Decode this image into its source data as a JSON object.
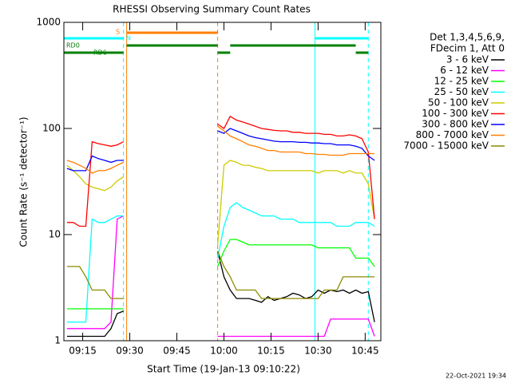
{
  "chart_data": {
    "type": "line",
    "title": "RHESSI Observing Summary Count Rates",
    "x_label": "Start Time (19-Jan-13 09:10:22)",
    "y_label": "Count Rate (s⁻¹ detector⁻¹)",
    "legend_header": [
      "Det 1,3,4,5,6,9,",
      "FDecim 1, Att 0"
    ],
    "timestamp": "22-Oct-2021 19:34",
    "log_y": true,
    "grid": false,
    "legend": "right",
    "xlim": [
      "09:09",
      "10:50"
    ],
    "xticks": [
      "09:15",
      "09:30",
      "09:45",
      "10:00",
      "10:15",
      "10:30",
      "10:45"
    ],
    "ylim": [
      1,
      1000
    ],
    "yticks": [
      1,
      10,
      100,
      1000
    ],
    "x": [
      "09:10",
      "09:12",
      "09:14",
      "09:16",
      "09:18",
      "09:20",
      "09:22",
      "09:24",
      "09:26",
      "09:28",
      "09:30",
      "09:58",
      "10:00",
      "10:02",
      "10:04",
      "10:06",
      "10:08",
      "10:10",
      "10:12",
      "10:14",
      "10:16",
      "10:18",
      "10:20",
      "10:22",
      "10:24",
      "10:26",
      "10:28",
      "10:30",
      "10:32",
      "10:34",
      "10:36",
      "10:38",
      "10:40",
      "10:42",
      "10:44",
      "10:46",
      "10:48"
    ],
    "series": [
      {
        "name": "3 - 6 keV",
        "color": "#000000",
        "values": [
          1.1,
          1.1,
          1.1,
          1.1,
          1.1,
          1.1,
          1.1,
          1.3,
          1.8,
          1.9,
          null,
          7,
          4,
          3,
          2.5,
          2.5,
          2.5,
          2.4,
          2.3,
          2.6,
          2.4,
          2.5,
          2.6,
          2.8,
          2.7,
          2.5,
          2.6,
          3,
          2.8,
          3,
          2.9,
          3,
          2.8,
          3,
          2.8,
          2.9,
          1.5
        ]
      },
      {
        "name": "6 - 12 keV",
        "color": "#ff00ff",
        "values": [
          1.3,
          1.3,
          1.3,
          1.3,
          1.3,
          1.3,
          1.3,
          1.5,
          14,
          15,
          null,
          1.1,
          1.1,
          1.1,
          1.1,
          1.1,
          1.1,
          1.1,
          1.1,
          1.1,
          1.1,
          1.1,
          1.1,
          1.1,
          1.1,
          1.1,
          1.1,
          1.1,
          1.1,
          1.6,
          1.6,
          1.6,
          1.6,
          1.6,
          1.6,
          1.6,
          1.1
        ]
      },
      {
        "name": "12 - 25 keV",
        "color": "#00ff00",
        "values": [
          2,
          2,
          2,
          2,
          2,
          2,
          2,
          2,
          2,
          2,
          null,
          5,
          7,
          9,
          9,
          8.5,
          8,
          8,
          8,
          8,
          8,
          8,
          8,
          8,
          8,
          8,
          8,
          7.5,
          7.5,
          7.5,
          7.5,
          7.5,
          7.5,
          6,
          6,
          6,
          5
        ]
      },
      {
        "name": "25 - 50 keV",
        "color": "#00ffff",
        "values": [
          1.5,
          1.5,
          1.5,
          1.5,
          14,
          13,
          13,
          14,
          15,
          15,
          null,
          6,
          12,
          18,
          20,
          18,
          17,
          16,
          15,
          15,
          15,
          14,
          14,
          14,
          13,
          13,
          13,
          13,
          13,
          13,
          12,
          12,
          12,
          13,
          13,
          13,
          12
        ]
      },
      {
        "name": "50 - 100 keV",
        "color": "#cccc00",
        "values": [
          45,
          40,
          35,
          30,
          28,
          27,
          26,
          28,
          32,
          35,
          null,
          8,
          45,
          50,
          48,
          45,
          45,
          43,
          42,
          40,
          40,
          40,
          40,
          40,
          40,
          40,
          40,
          38,
          40,
          40,
          40,
          38,
          40,
          38,
          38,
          30,
          14
        ]
      },
      {
        "name": "100 - 300 keV",
        "color": "#ff0000",
        "values": [
          13,
          13,
          12,
          12,
          75,
          72,
          70,
          68,
          70,
          75,
          null,
          110,
          100,
          130,
          120,
          115,
          110,
          105,
          100,
          98,
          96,
          95,
          95,
          92,
          92,
          90,
          90,
          90,
          88,
          88,
          85,
          85,
          87,
          85,
          80,
          60,
          14
        ]
      },
      {
        "name": "300 - 800 keV",
        "color": "#0000ff",
        "values": [
          42,
          40,
          40,
          40,
          55,
          52,
          50,
          48,
          50,
          50,
          null,
          95,
          90,
          100,
          95,
          90,
          85,
          82,
          80,
          78,
          76,
          75,
          75,
          75,
          74,
          74,
          73,
          73,
          72,
          72,
          70,
          70,
          70,
          68,
          65,
          55,
          50
        ]
      },
      {
        "name": "800 - 7000 keV",
        "color": "#ff7f00",
        "values": [
          50,
          48,
          45,
          42,
          38,
          40,
          40,
          42,
          45,
          48,
          null,
          105,
          95,
          85,
          80,
          75,
          70,
          68,
          65,
          62,
          62,
          60,
          60,
          60,
          60,
          58,
          58,
          57,
          57,
          56,
          56,
          56,
          58,
          58,
          58,
          58,
          58
        ]
      },
      {
        "name": "7000 - 15000 keV",
        "color": "#8b8b00",
        "values": [
          5,
          5,
          5,
          4,
          3,
          3,
          3,
          2.5,
          2.5,
          2.5,
          null,
          7,
          5,
          4,
          3,
          3,
          3,
          3,
          2.5,
          2.5,
          2.5,
          2.5,
          2.5,
          2.5,
          2.5,
          2.5,
          2.5,
          2.5,
          3,
          3,
          3,
          4,
          4,
          4,
          4,
          4,
          4
        ]
      }
    ],
    "flags": [
      {
        "label": "S",
        "color": "#ff7f00",
        "intervals": [
          [
            "09:29",
            "09:58"
          ]
        ]
      },
      {
        "label": "N",
        "color": "#00ffff",
        "intervals": [
          [
            "09:09",
            "09:28"
          ],
          [
            "10:29",
            "10:46"
          ]
        ]
      },
      {
        "label": "RD0",
        "color": "#008000",
        "intervals": [
          [
            "09:29",
            "09:58"
          ],
          [
            "10:02",
            "10:42"
          ]
        ]
      },
      {
        "label": "RD6",
        "color": "#008000",
        "intervals": [
          [
            "09:09",
            "09:28"
          ],
          [
            "09:58",
            "10:02"
          ],
          [
            "10:42",
            "10:46"
          ]
        ]
      }
    ],
    "markers": [
      {
        "time": "09:28",
        "color": "#00ffff",
        "dashed": true
      },
      {
        "time": "09:29",
        "color": "#ff7f00",
        "dashed": false
      },
      {
        "time": "09:58",
        "color": "#ff7f00",
        "dashed": true
      },
      {
        "time": "10:29",
        "color": "#00ffff",
        "dashed": false
      },
      {
        "time": "10:46",
        "color": "#00ffff",
        "dashed": true
      }
    ]
  }
}
